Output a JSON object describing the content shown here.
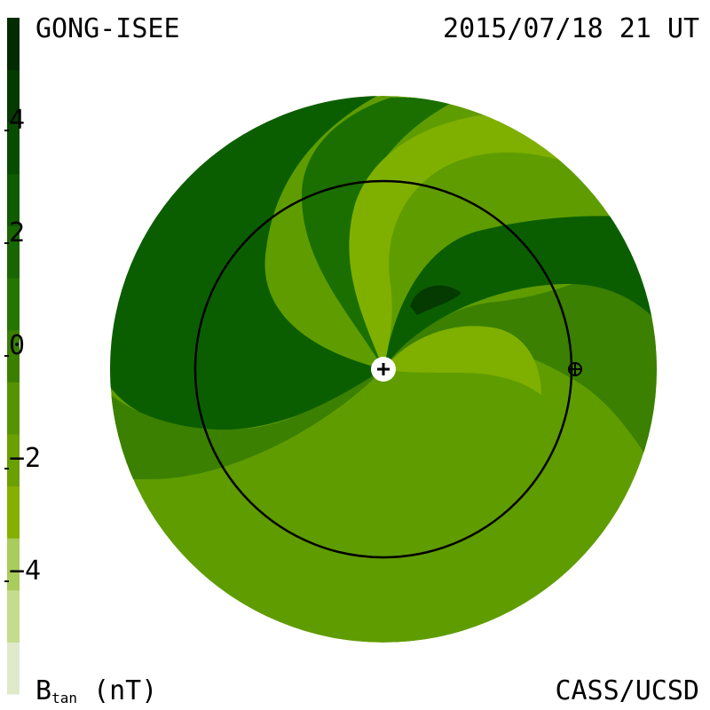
{
  "header": {
    "source": "GONG-ISEE",
    "datetime": "2015/07/18 21 UT"
  },
  "footer": {
    "credit": "CASS/UCSD",
    "unit_main": "B",
    "unit_sub": "tan",
    "unit_rest": " (nT)"
  },
  "colorbar": {
    "min": -6,
    "max": 6,
    "tick_labels": [
      "4",
      "2",
      "0",
      "−2",
      "−4"
    ],
    "tick_values": [
      4,
      2,
      0,
      -2,
      -4
    ],
    "colors": [
      "#e0eacb",
      "#c5db8d",
      "#a9cc5c",
      "#85b000",
      "#6aa000",
      "#579300",
      "#3b7f00",
      "#247600",
      "#176600",
      "#0e5b00",
      "#084c00",
      "#053a00",
      "#022b00"
    ]
  },
  "map": {
    "colors": {
      "dark": "#0b5e00",
      "mid_dark": "#1a6f00",
      "mid": "#3b8000",
      "base": "#5f9c00",
      "light": "#7fb000",
      "very_dark": "#053a00"
    },
    "markers": {
      "sun_marker": "plus-in-white-circle",
      "earth_marker": "circle-plus"
    }
  }
}
